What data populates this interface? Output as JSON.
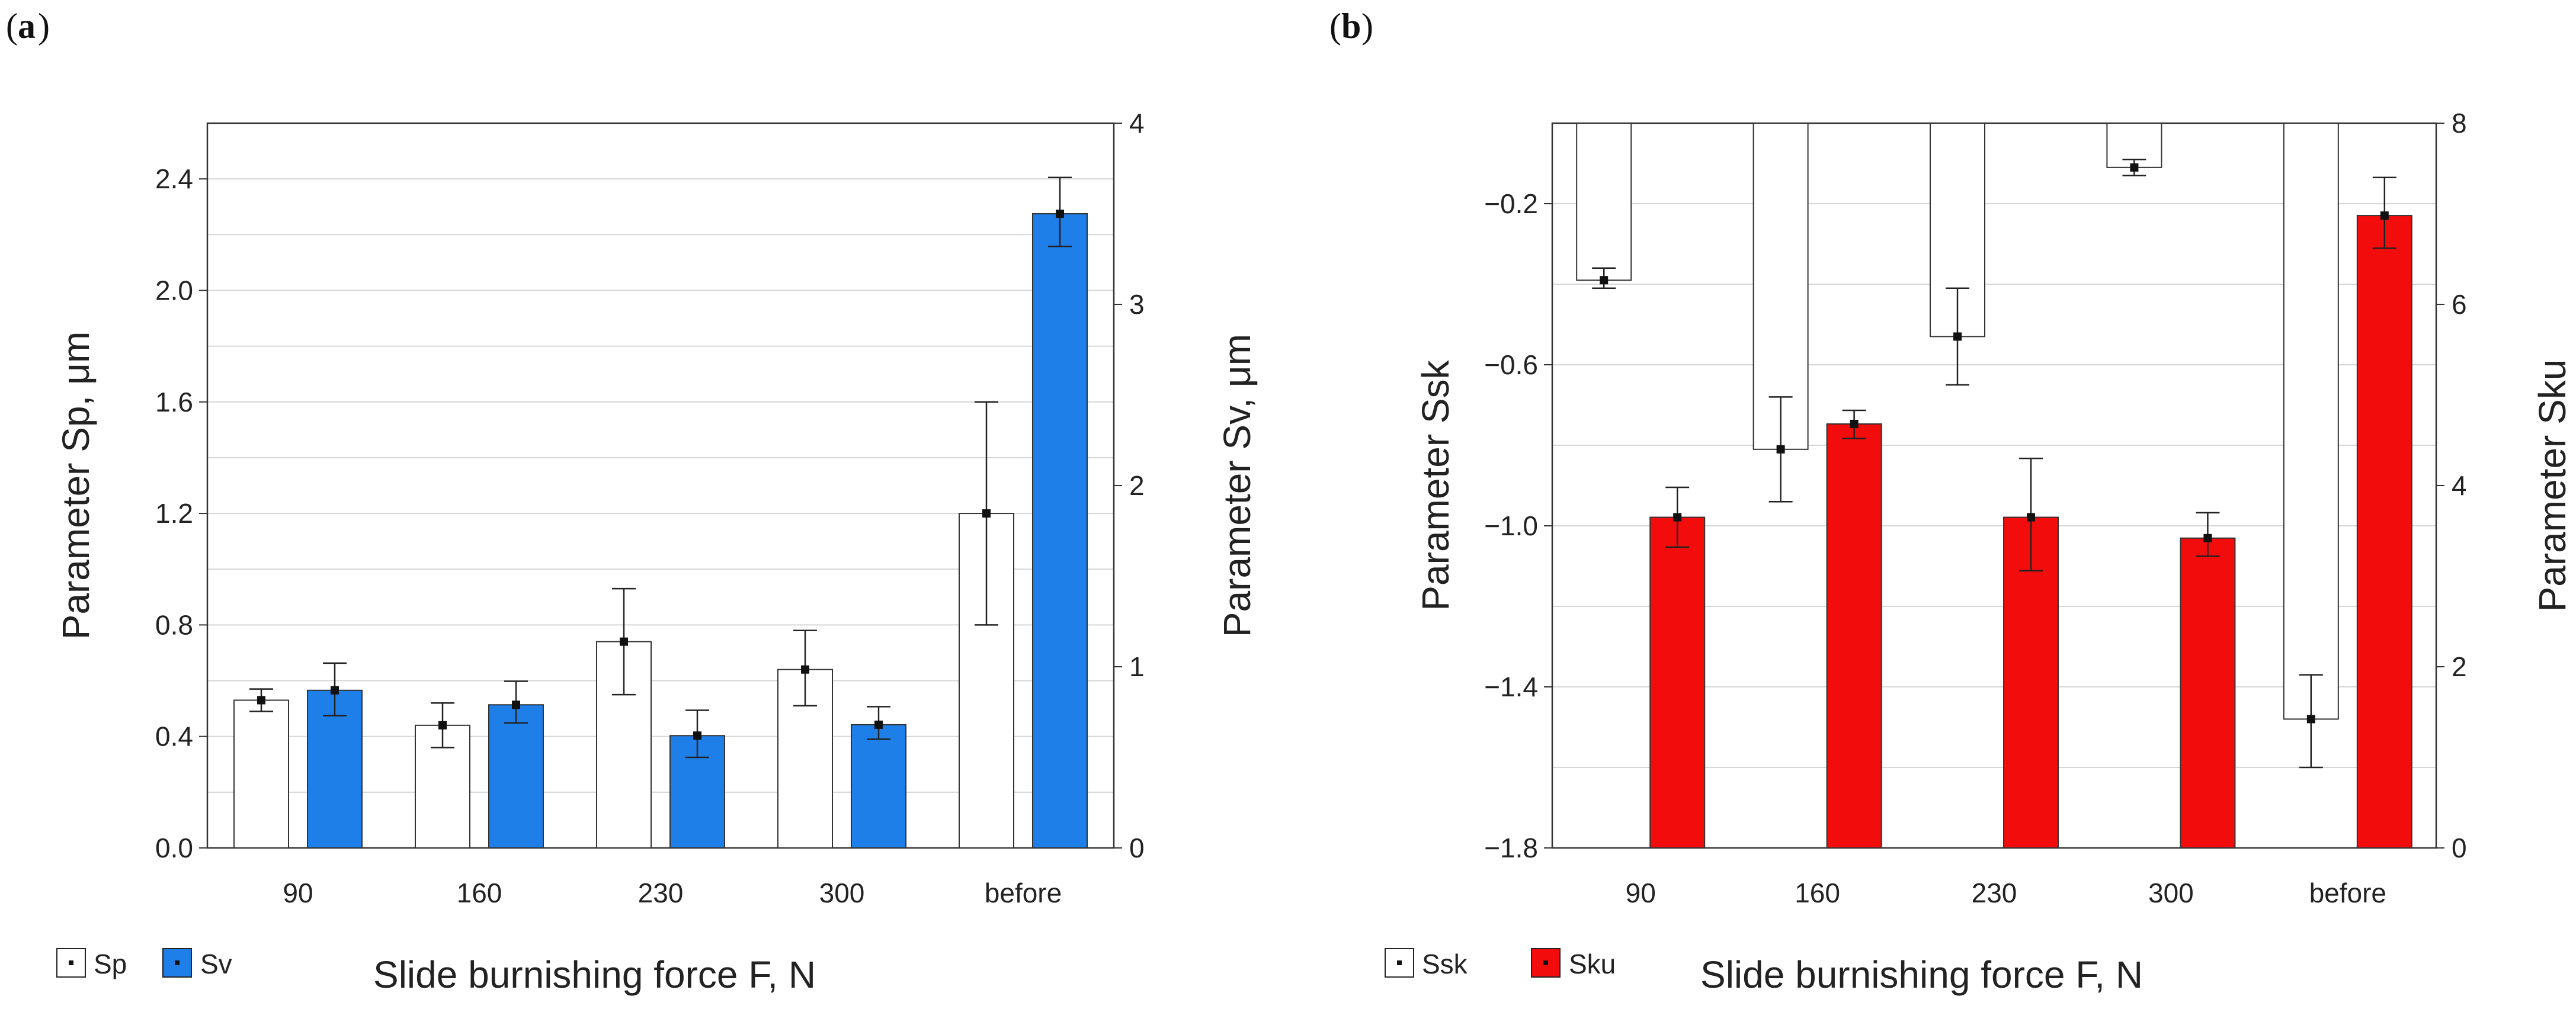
{
  "panels": [
    {
      "panel_label": "a",
      "legend": [
        {
          "name": "Sp",
          "swatch_color": "#ffffff"
        },
        {
          "name": "Sv",
          "swatch_color": "#1e7fe8"
        }
      ],
      "xlabel_text": "Slide burnishing force F, N"
    },
    {
      "panel_label": "b",
      "legend": [
        {
          "name": "Ssk",
          "swatch_color": "#ffffff"
        },
        {
          "name": "Sku",
          "swatch_color": "#f20c0c"
        }
      ],
      "xlabel_text": "Slide burnishing force F, N"
    }
  ],
  "chart_data": [
    {
      "type": "bar",
      "title": "",
      "categories": [
        "90",
        "160",
        "230",
        "300",
        "before"
      ],
      "xlabel": "Slide burnishing force F, N",
      "ylabel_left": "Parameter Sp, μm",
      "ylabel_right": "Parameter Sv, μm",
      "ylim_left": [
        0,
        2.6
      ],
      "yticks_left": [
        "0.0",
        "0.4",
        "0.8",
        "1.2",
        "1.6",
        "2.0",
        "2.4"
      ],
      "ylim_right": [
        0,
        4
      ],
      "yticks_right": [
        "0",
        "1",
        "2",
        "3",
        "4"
      ],
      "grid": true,
      "series": [
        {
          "name": "Sp",
          "axis": "left",
          "color": "#ffffff",
          "values": [
            0.53,
            0.44,
            0.74,
            0.64,
            1.2
          ],
          "error_low": [
            0.49,
            0.36,
            0.55,
            0.51,
            0.8
          ],
          "error_high": [
            0.57,
            0.52,
            0.93,
            0.78,
            1.6
          ]
        },
        {
          "name": "Sv",
          "axis": "right",
          "color": "#1e7fe8",
          "values": [
            0.87,
            0.79,
            0.62,
            0.68,
            3.5
          ],
          "error_low": [
            0.73,
            0.69,
            0.5,
            0.6,
            3.32
          ],
          "error_high": [
            1.02,
            0.92,
            0.76,
            0.78,
            3.7
          ]
        }
      ]
    },
    {
      "type": "bar",
      "title": "",
      "categories": [
        "90",
        "160",
        "230",
        "300",
        "before"
      ],
      "xlabel": "Slide burnishing force F, N",
      "ylabel_left": "Parameter Ssk",
      "ylabel_right": "Parameter Sku",
      "ylim_left": [
        -1.8,
        0
      ],
      "yticks_left": [
        "−1.8",
        "−1.4",
        "−1.0",
        "−0.6",
        "−0.2"
      ],
      "ylim_right": [
        0,
        8
      ],
      "yticks_right": [
        "0",
        "2",
        "4",
        "6",
        "8"
      ],
      "grid": true,
      "series": [
        {
          "name": "Ssk",
          "axis": "left",
          "color": "#ffffff",
          "values": [
            -0.39,
            -0.81,
            -0.53,
            -0.11,
            -1.48
          ],
          "error_low": [
            -0.41,
            -0.94,
            -0.65,
            -0.13,
            -1.6
          ],
          "error_high": [
            -0.36,
            -0.68,
            -0.41,
            -0.09,
            -1.37
          ]
        },
        {
          "name": "Sku",
          "axis": "right",
          "color": "#f20c0c",
          "values": [
            3.65,
            4.68,
            3.65,
            3.42,
            6.98
          ],
          "error_low": [
            3.32,
            4.52,
            3.06,
            3.22,
            6.62
          ],
          "error_high": [
            3.98,
            4.83,
            4.3,
            3.7,
            7.4
          ]
        }
      ]
    }
  ]
}
